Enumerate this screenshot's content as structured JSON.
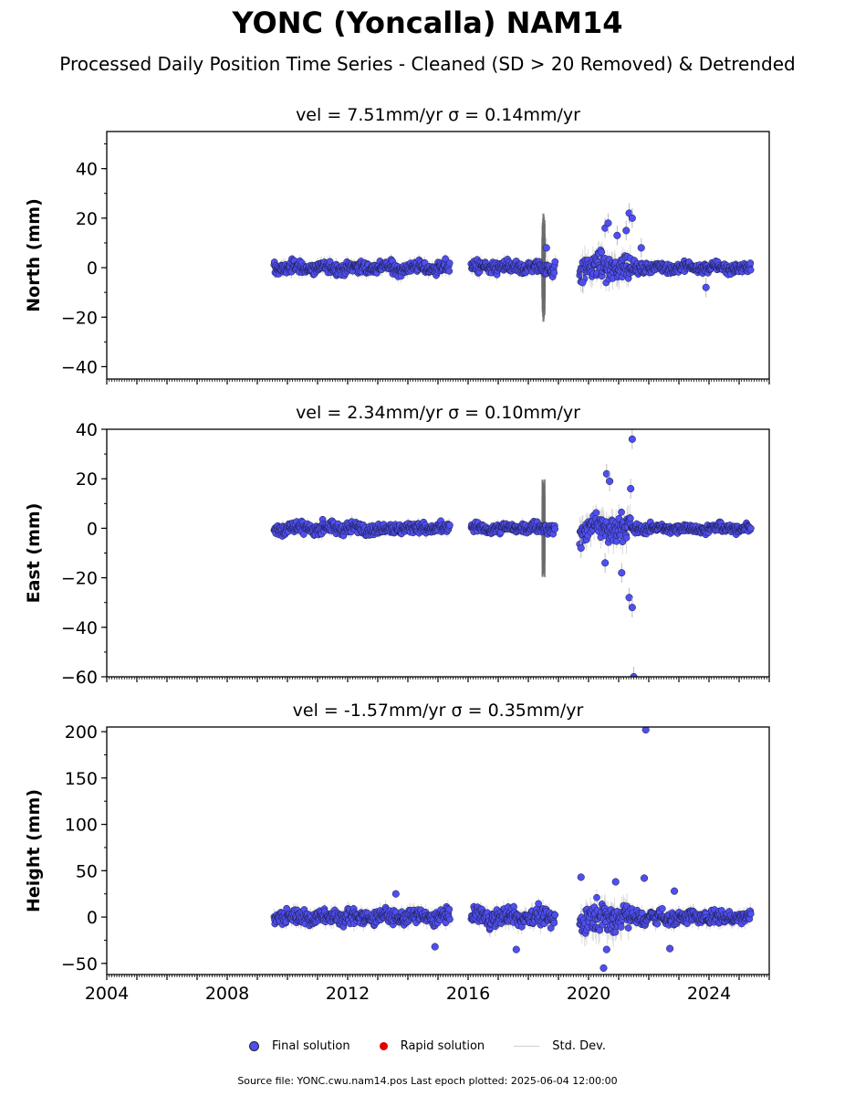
{
  "title": "YONC (Yoncalla) NAM14",
  "subtitle": "Processed Daily Position Time Series - Cleaned (SD > 20 Removed) & Detrended",
  "legend": {
    "final": "Final solution",
    "rapid": "Rapid solution",
    "std": "Std. Dev."
  },
  "footer": "Source file: YONC.cwu.nam14.pos  Last epoch plotted: 2025-06-04 12:00:00",
  "colors": {
    "final": "#4f4ff0",
    "rapid": "#e00000",
    "stddev": "#bdbdbd",
    "stddev_dark": "#6a6a6a"
  },
  "chart_data": [
    {
      "type": "scatter",
      "panel": "north",
      "title": "vel = 7.51mm/yr   σ = 0.14mm/yr",
      "ylabel": "North (mm)",
      "xlim": [
        2004.0,
        2026.0
      ],
      "ylim": [
        -45,
        55
      ],
      "yticks": [
        -40,
        -20,
        0,
        20,
        40
      ],
      "xticks": [
        2004,
        2008,
        2012,
        2016,
        2020,
        2024
      ],
      "segments": [
        {
          "start": 2009.55,
          "end": 2015.4,
          "amp": 2.2
        },
        {
          "start": 2016.1,
          "end": 2018.9,
          "amp": 2.4
        },
        {
          "start": 2019.7,
          "end": 2021.4,
          "amp": 4.5
        },
        {
          "start": 2021.4,
          "end": 2025.4,
          "amp": 1.8
        }
      ],
      "highlights": [
        {
          "x": 2020.55,
          "y": 16
        },
        {
          "x": 2020.65,
          "y": 18
        },
        {
          "x": 2020.95,
          "y": 13
        },
        {
          "x": 2021.25,
          "y": 15
        },
        {
          "x": 2021.35,
          "y": 22
        },
        {
          "x": 2021.45,
          "y": 20
        },
        {
          "x": 2021.75,
          "y": 8
        },
        {
          "x": 2018.6,
          "y": 8
        },
        {
          "x": 2019.8,
          "y": -6
        },
        {
          "x": 2023.9,
          "y": -8
        }
      ],
      "grey_spike": {
        "x": 2018.5,
        "half": 22
      }
    },
    {
      "type": "scatter",
      "panel": "east",
      "title": "vel = 2.34mm/yr   σ = 0.10mm/yr",
      "ylabel": "East (mm)",
      "xlim": [
        2004.0,
        2026.0
      ],
      "ylim": [
        -60,
        40
      ],
      "yticks": [
        -60,
        -40,
        -20,
        0,
        20,
        40
      ],
      "xticks": [
        2004,
        2008,
        2012,
        2016,
        2020,
        2024
      ],
      "segments": [
        {
          "start": 2009.55,
          "end": 2015.4,
          "amp": 2.0
        },
        {
          "start": 2016.1,
          "end": 2018.9,
          "amp": 1.8
        },
        {
          "start": 2019.7,
          "end": 2021.4,
          "amp": 5.0
        },
        {
          "start": 2021.4,
          "end": 2025.4,
          "amp": 1.6
        }
      ],
      "highlights": [
        {
          "x": 2021.45,
          "y": 36
        },
        {
          "x": 2020.6,
          "y": 22
        },
        {
          "x": 2020.7,
          "y": 19
        },
        {
          "x": 2021.4,
          "y": 16
        },
        {
          "x": 2021.35,
          "y": -28
        },
        {
          "x": 2021.45,
          "y": -32
        },
        {
          "x": 2021.5,
          "y": -60
        },
        {
          "x": 2020.55,
          "y": -14
        },
        {
          "x": 2021.1,
          "y": -18
        },
        {
          "x": 2019.75,
          "y": -8
        }
      ],
      "grey_spike": {
        "x": 2018.5,
        "half": 20
      }
    },
    {
      "type": "scatter",
      "panel": "height",
      "title": "vel = -1.57mm/yr   σ = 0.35mm/yr",
      "ylabel": "Height (mm)",
      "xlim": [
        2004.0,
        2026.0
      ],
      "ylim": [
        -62,
        205
      ],
      "yticks": [
        -50,
        0,
        50,
        100,
        150,
        200
      ],
      "xticks": [
        2004,
        2008,
        2012,
        2016,
        2020,
        2024
      ],
      "xlabels": [
        "2004",
        "2008",
        "2012",
        "2016",
        "2020",
        "2024"
      ],
      "segments": [
        {
          "start": 2009.55,
          "end": 2015.4,
          "amp": 7.0
        },
        {
          "start": 2016.1,
          "end": 2018.9,
          "amp": 8.0
        },
        {
          "start": 2019.7,
          "end": 2021.4,
          "amp": 14.0
        },
        {
          "start": 2021.4,
          "end": 2025.4,
          "amp": 7.0
        }
      ],
      "highlights": [
        {
          "x": 2021.9,
          "y": 202
        },
        {
          "x": 2021.85,
          "y": 42
        },
        {
          "x": 2019.75,
          "y": 43
        },
        {
          "x": 2020.5,
          "y": -55
        },
        {
          "x": 2020.6,
          "y": -35
        },
        {
          "x": 2013.6,
          "y": 25
        },
        {
          "x": 2014.9,
          "y": -32
        },
        {
          "x": 2022.85,
          "y": 28
        },
        {
          "x": 2022.7,
          "y": -34
        },
        {
          "x": 2017.6,
          "y": -35
        },
        {
          "x": 2020.9,
          "y": 38
        }
      ],
      "grey_spike": null
    }
  ]
}
